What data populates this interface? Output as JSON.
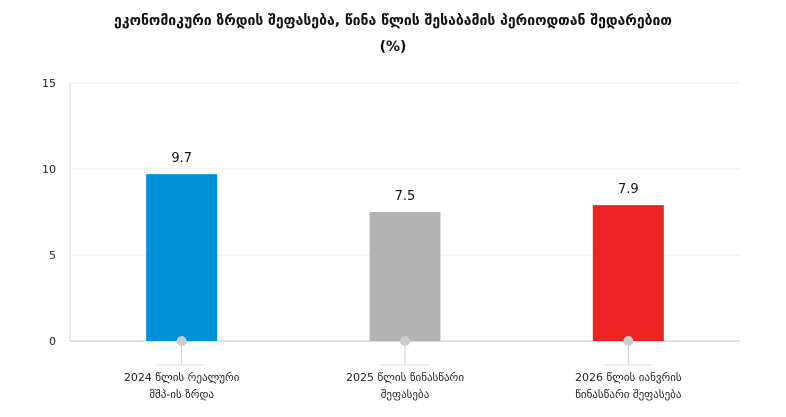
{
  "chart_data": {
    "type": "bar",
    "title": "ეკონომიკური ზრდის შეფასება, წინა წლის შესაბამის პერიოდთან შედარებით",
    "subtitle": "(%)",
    "categories": [
      [
        "2024 წლის რეალური",
        "მშპ-ის ზრდა"
      ],
      [
        "2025 წლის წინასწარი",
        "შეფასება"
      ],
      [
        "2026 წლის იანვრის",
        "წინასწარი შეფასება"
      ]
    ],
    "values": [
      9.7,
      7.5,
      7.9
    ],
    "data_labels": [
      "9.7",
      "7.5",
      "7.9"
    ],
    "colors": [
      "#0090d8",
      "#b3b3b3",
      "#ee2222"
    ],
    "ylim": [
      0,
      15
    ],
    "yticks": [
      "0",
      "5",
      "10",
      "15"
    ],
    "grid": true,
    "xlabel": "",
    "ylabel": ""
  }
}
